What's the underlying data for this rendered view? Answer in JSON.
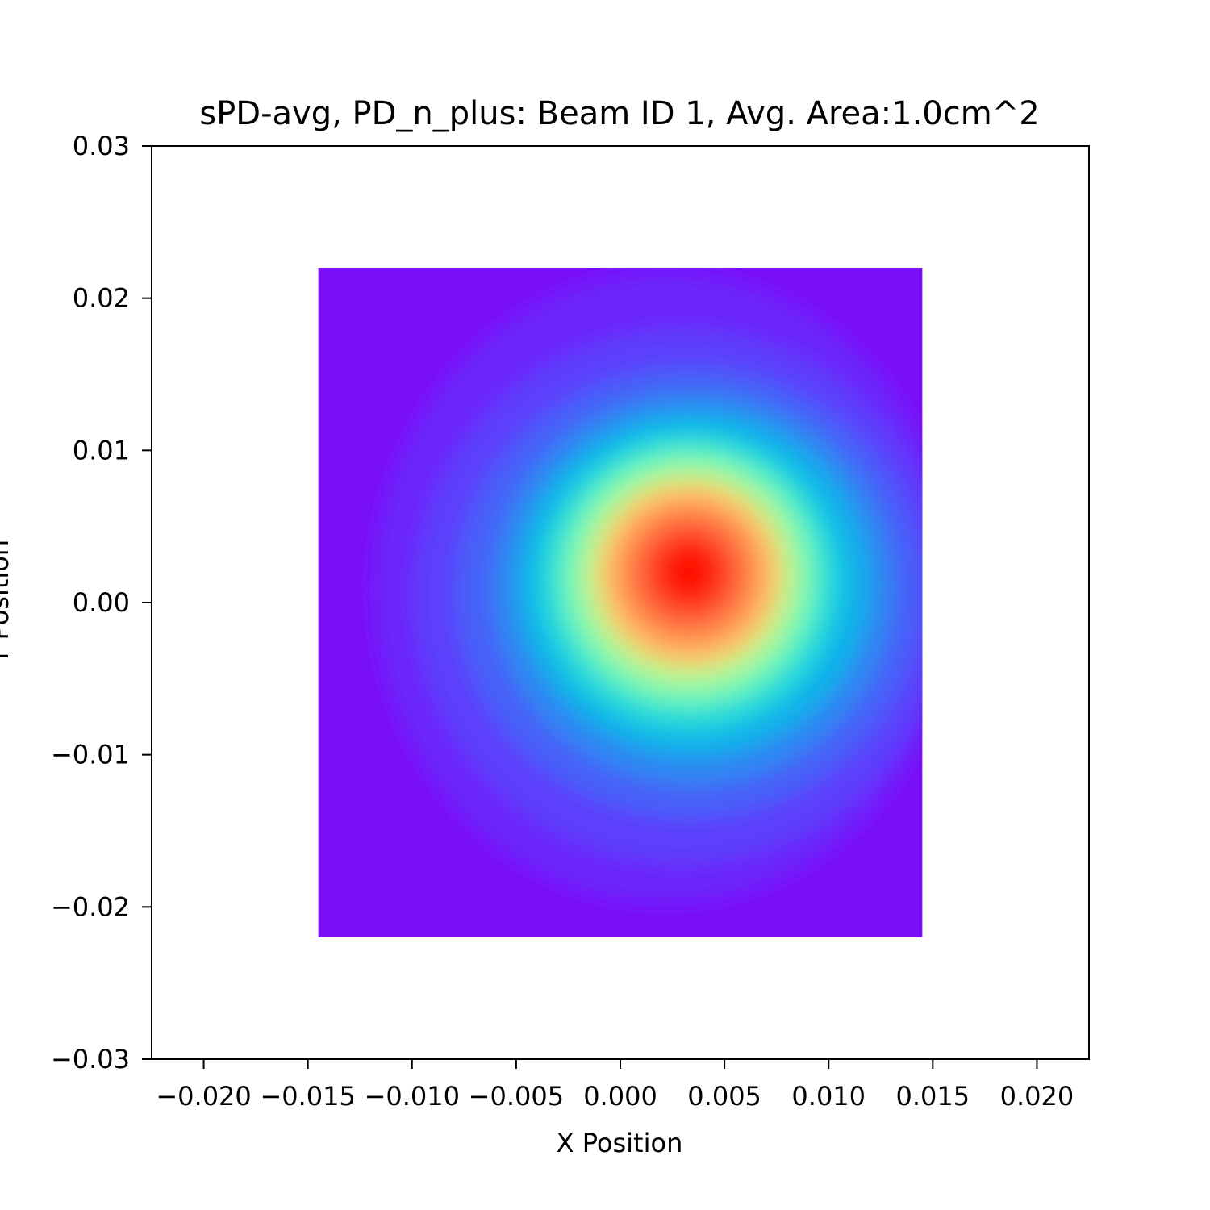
{
  "chart_data": {
    "type": "heatmap",
    "title": "sPD-avg, PD_n_plus: Beam ID 1, Avg. Area:1.0cm^2",
    "xlabel": "X Position",
    "ylabel": "Y Position",
    "xlim": [
      -0.0225,
      0.0225
    ],
    "ylim": [
      -0.03,
      0.03
    ],
    "x_ticks": [
      -0.02,
      -0.015,
      -0.01,
      -0.005,
      0.0,
      0.005,
      0.01,
      0.015,
      0.02
    ],
    "x_tick_labels": [
      "−0.020",
      "−0.015",
      "−0.010",
      "−0.005",
      "0.000",
      "0.005",
      "0.010",
      "0.015",
      "0.020"
    ],
    "y_ticks": [
      0.03,
      0.02,
      0.01,
      0.0,
      -0.01,
      -0.02,
      -0.03
    ],
    "y_tick_labels": [
      "0.03",
      "0.02",
      "0.01",
      "0.00",
      "−0.01",
      "−0.02",
      "−0.03"
    ],
    "data_extent": {
      "x": [
        -0.0145,
        0.0145
      ],
      "y": [
        -0.022,
        0.022
      ]
    },
    "peak": {
      "x": 0.0033,
      "y": 0.002
    },
    "colormap": "rainbow",
    "grid": false,
    "legend": "none"
  }
}
